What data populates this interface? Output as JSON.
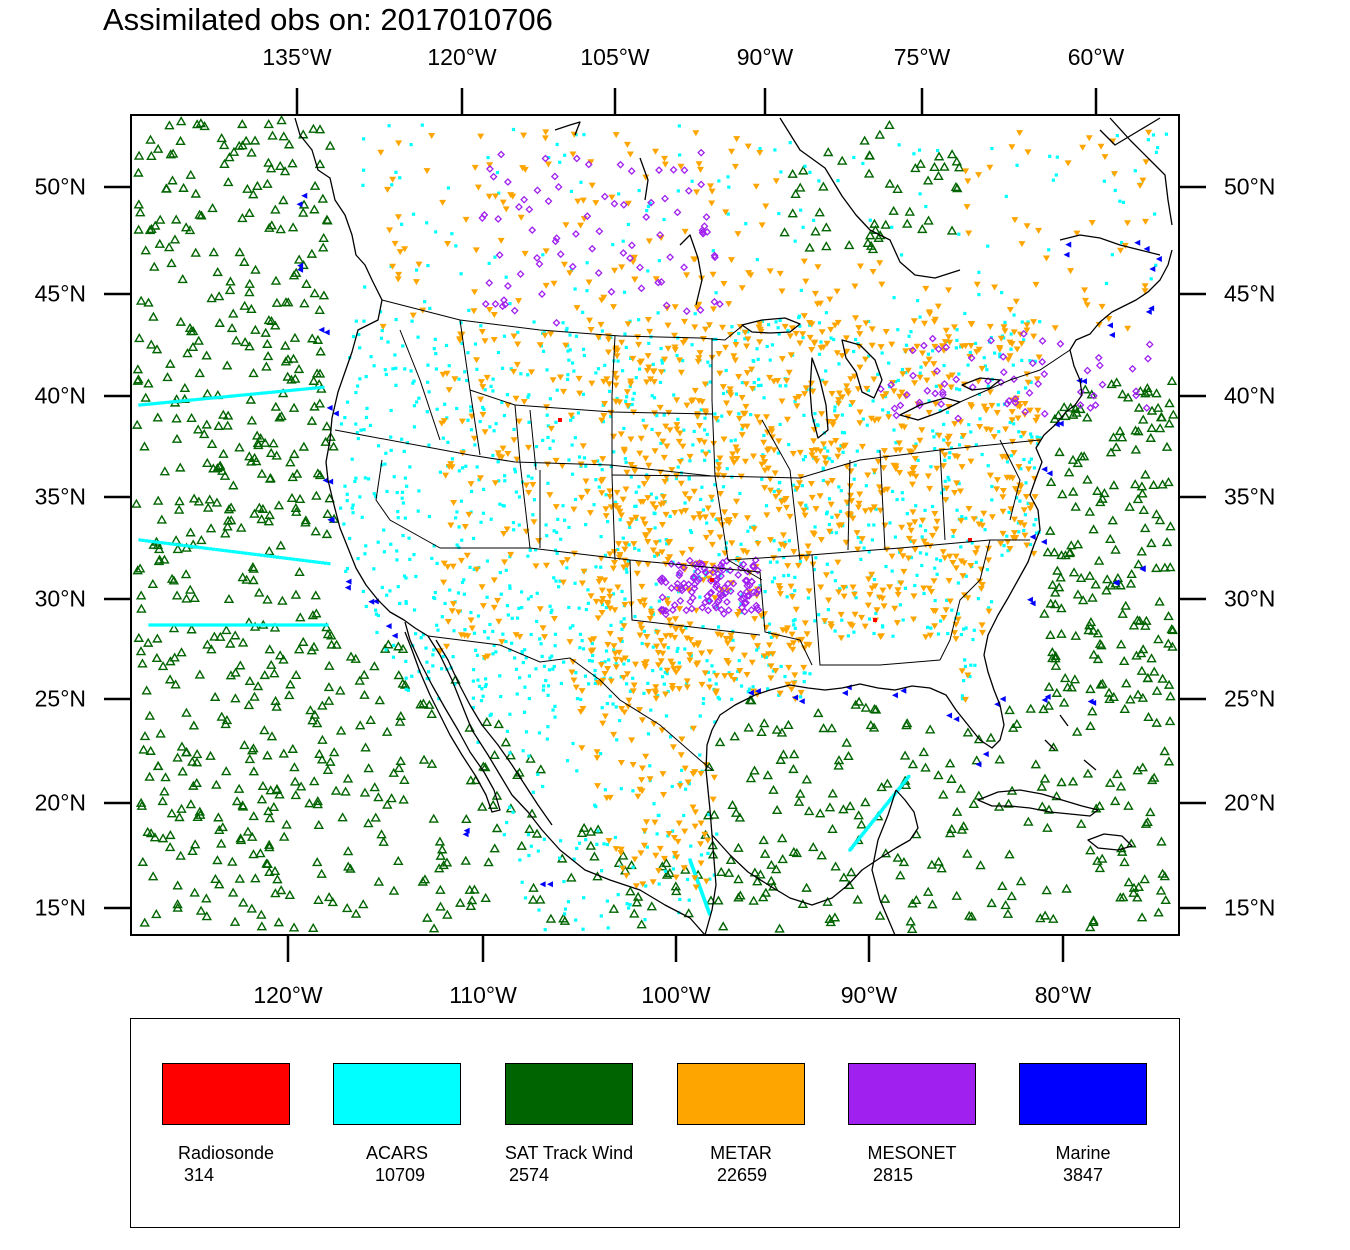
{
  "title": "Assimilated obs on: 2017010706",
  "axes": {
    "top_lon_labels": [
      "135°W",
      "120°W",
      "105°W",
      "90°W",
      "75°W",
      "60°W"
    ],
    "bottom_lon_labels": [
      "120°W",
      "110°W",
      "100°W",
      "90°W",
      "80°W"
    ],
    "left_lat_labels": [
      "50°N",
      "45°N",
      "40°N",
      "35°N",
      "30°N",
      "25°N",
      "20°N",
      "15°N"
    ],
    "right_lat_labels": [
      "50°N",
      "45°N",
      "40°N",
      "35°N",
      "30°N",
      "25°N",
      "20°N",
      "15°N"
    ]
  },
  "legend": [
    {
      "name": "Radiosonde",
      "count": "314",
      "color": "#ff0000"
    },
    {
      "name": "ACARS",
      "count": "10709",
      "color": "#00ffff"
    },
    {
      "name": "SAT Track Wind",
      "count": "2574",
      "color": "#006400"
    },
    {
      "name": "METAR",
      "count": "22659",
      "color": "#ffa500"
    },
    {
      "name": "MESONET",
      "count": "2815",
      "color": "#a020f0"
    },
    {
      "name": "Marine",
      "count": "3847",
      "color": "#0000ff"
    }
  ],
  "symbols": {
    "Radiosonde": "red-square-marker",
    "ACARS": "cyan-dot-marker",
    "SAT Track Wind": "green-triangle-marker",
    "METAR": "orange-down-triangle-marker",
    "MESONET": "purple-diamond-marker",
    "Marine": "blue-left-triangle-marker"
  }
}
